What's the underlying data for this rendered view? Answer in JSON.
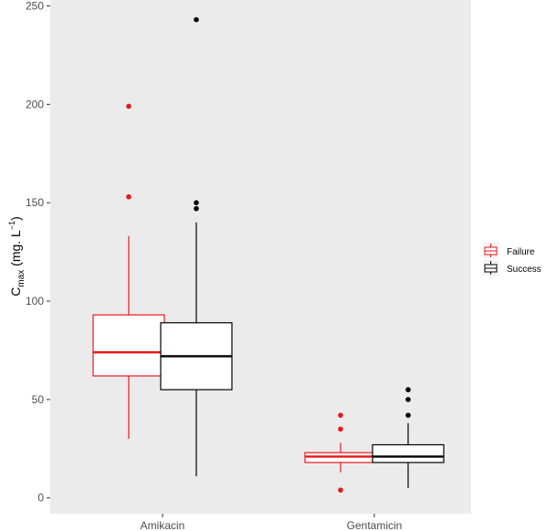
{
  "chart_data": {
    "type": "boxplot",
    "categories": [
      "Amikacin",
      "Gentamicin"
    ],
    "ylabel": {
      "main": "C",
      "sub": "max",
      "unit": " (mg. L",
      "sup": "−1",
      "close": ")"
    },
    "xlabel": "",
    "ylim": [
      -8,
      253
    ],
    "yticks": [
      0,
      50,
      100,
      150,
      200,
      250
    ],
    "grid": false,
    "background": "#ebebeb",
    "legend_position": "right",
    "series": [
      {
        "name": "Failure",
        "color": "#e8161b",
        "boxes": [
          {
            "whisker_low": 30,
            "q1": 62,
            "median": 74,
            "q3": 93,
            "whisker_high": 133,
            "outliers": [
              153,
              199
            ]
          },
          {
            "whisker_low": 13,
            "q1": 18,
            "median": 21,
            "q3": 23,
            "whisker_high": 28,
            "outliers": [
              4,
              35,
              42
            ]
          }
        ]
      },
      {
        "name": "Success",
        "color": "#000000",
        "boxes": [
          {
            "whisker_low": 11,
            "q1": 55,
            "median": 72,
            "q3": 89,
            "whisker_high": 140,
            "outliers": [
              147,
              150,
              243
            ]
          },
          {
            "whisker_low": 5,
            "q1": 18,
            "median": 21,
            "q3": 27,
            "whisker_high": 38,
            "outliers": [
              42,
              50,
              55
            ]
          }
        ]
      }
    ]
  }
}
